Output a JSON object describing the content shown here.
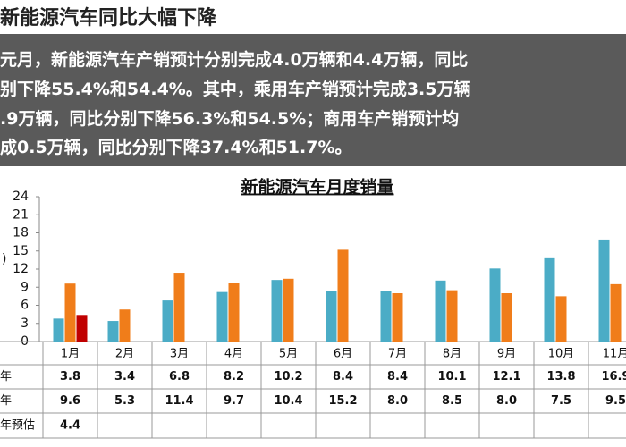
{
  "header": {
    "title": "新能源汽车同比大幅下降"
  },
  "summary": [
    "元月，新能源汽车产销预计分别完成4.0万辆和4.4万辆，同比",
    "别下降55.4%和54.4%。其中，乘用车产销预计完成3.5万辆",
    ".9万辆，同比分别下降56.3%和54.5%；商用车产销预计均",
    "成0.5万辆，同比分别下降37.4%和51.7%。"
  ],
  "chart_data": {
    "type": "bar",
    "title": "新能源汽车月度销量",
    "y_label": ")",
    "categories": [
      "1月",
      "2月",
      "3月",
      "4月",
      "5月",
      "6月",
      "7月",
      "8月",
      "9月",
      "10月",
      "11月"
    ],
    "series": [
      {
        "name": "年",
        "color": "#4bacc6",
        "values": [
          3.8,
          3.4,
          6.8,
          8.2,
          10.2,
          8.4,
          8.4,
          10.1,
          12.1,
          13.8,
          16.9
        ],
        "value_labels": [
          "3.8",
          "3.4",
          "6.8",
          "8.2",
          "10.2",
          "8.4",
          "8.4",
          "10.1",
          "12.1",
          "13.8",
          "16.9"
        ]
      },
      {
        "name": "年",
        "color": "#f07d1a",
        "values": [
          9.6,
          5.3,
          11.4,
          9.7,
          10.4,
          15.2,
          8.0,
          8.5,
          8.0,
          7.5,
          9.5
        ],
        "value_labels": [
          "9.6",
          "5.3",
          "11.4",
          "9.7",
          "10.4",
          "15.2",
          "8.0",
          "8.5",
          "8.0",
          "7.5",
          "9.5"
        ]
      },
      {
        "name": "年预估",
        "color": "#c00000",
        "values": [
          4.4,
          null,
          null,
          null,
          null,
          null,
          null,
          null,
          null,
          null,
          null
        ],
        "value_labels": [
          "4.4",
          null,
          null,
          null,
          null,
          null,
          null,
          null,
          null,
          null,
          null
        ]
      }
    ],
    "ylim": [
      0,
      24
    ],
    "yticks": [
      0,
      3,
      6,
      9,
      12,
      15,
      18,
      21,
      24
    ],
    "grid": false
  }
}
